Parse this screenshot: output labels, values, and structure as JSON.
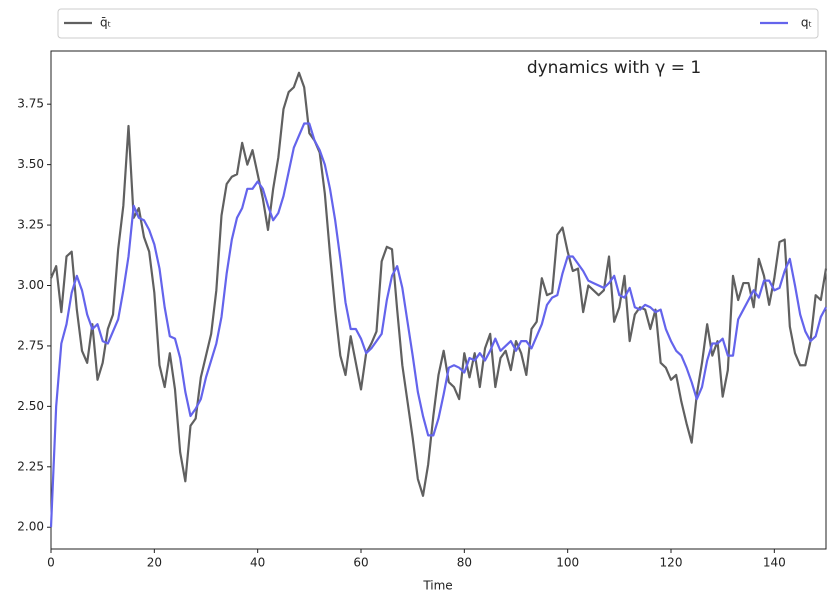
{
  "chart_data": {
    "type": "line",
    "title": "dynamics with γ = 1",
    "xlabel": "Time",
    "x": [
      0,
      1,
      2,
      3,
      4,
      5,
      6,
      7,
      8,
      9,
      10,
      11,
      12,
      13,
      14,
      15,
      16,
      17,
      18,
      19,
      20,
      21,
      22,
      23,
      24,
      25,
      26,
      27,
      28,
      29,
      30,
      31,
      32,
      33,
      34,
      35,
      36,
      37,
      38,
      39,
      40,
      41,
      42,
      43,
      44,
      45,
      46,
      47,
      48,
      49,
      50,
      51,
      52,
      53,
      54,
      55,
      56,
      57,
      58,
      59,
      60,
      61,
      62,
      63,
      64,
      65,
      66,
      67,
      68,
      69,
      70,
      71,
      72,
      73,
      74,
      75,
      76,
      77,
      78,
      79,
      80,
      81,
      82,
      83,
      84,
      85,
      86,
      87,
      88,
      89,
      90,
      91,
      92,
      93,
      94,
      95,
      96,
      97,
      98,
      99,
      100,
      101,
      102,
      103,
      104,
      105,
      106,
      107,
      108,
      109,
      110,
      111,
      112,
      113,
      114,
      115,
      116,
      117,
      118,
      119,
      120,
      121,
      122,
      123,
      124,
      125,
      126,
      127,
      128,
      129,
      130,
      131,
      132,
      133,
      134,
      135,
      136,
      137,
      138,
      139,
      140,
      141,
      142,
      143,
      144,
      145,
      146,
      147,
      148,
      149,
      150
    ],
    "series": [
      {
        "name": "q̄ₜ",
        "color": "#606060",
        "values": [
          3.03,
          3.08,
          2.89,
          3.12,
          3.14,
          2.9,
          2.73,
          2.68,
          2.84,
          2.61,
          2.68,
          2.82,
          2.88,
          3.15,
          3.33,
          3.66,
          3.28,
          3.32,
          3.2,
          3.14,
          2.97,
          2.67,
          2.58,
          2.72,
          2.57,
          2.31,
          2.19,
          2.42,
          2.45,
          2.62,
          2.71,
          2.8,
          2.98,
          3.29,
          3.42,
          3.45,
          3.46,
          3.59,
          3.5,
          3.56,
          3.46,
          3.36,
          3.23,
          3.4,
          3.53,
          3.73,
          3.8,
          3.82,
          3.88,
          3.82,
          3.63,
          3.6,
          3.55,
          3.38,
          3.13,
          2.9,
          2.71,
          2.63,
          2.79,
          2.68,
          2.57,
          2.72,
          2.76,
          2.81,
          3.1,
          3.16,
          3.15,
          2.9,
          2.67,
          2.52,
          2.37,
          2.2,
          2.13,
          2.26,
          2.46,
          2.63,
          2.73,
          2.6,
          2.58,
          2.53,
          2.72,
          2.62,
          2.72,
          2.58,
          2.74,
          2.8,
          2.58,
          2.7,
          2.73,
          2.65,
          2.77,
          2.72,
          2.63,
          2.82,
          2.85,
          3.03,
          2.96,
          2.97,
          3.21,
          3.24,
          3.14,
          3.06,
          3.07,
          2.89,
          3.0,
          2.98,
          2.96,
          2.98,
          3.12,
          2.85,
          2.91,
          3.04,
          2.77,
          2.88,
          2.91,
          2.9,
          2.82,
          2.9,
          2.68,
          2.66,
          2.61,
          2.63,
          2.52,
          2.43,
          2.35,
          2.55,
          2.68,
          2.84,
          2.71,
          2.77,
          2.54,
          2.65,
          3.04,
          2.94,
          3.01,
          3.01,
          2.91,
          3.11,
          3.04,
          2.92,
          3.03,
          3.18,
          3.19,
          2.83,
          2.72,
          2.67,
          2.67,
          2.77,
          2.96,
          2.94,
          3.07
        ]
      },
      {
        "name": "qₜ",
        "color": "#6464ec",
        "values": [
          2.0,
          2.5,
          2.76,
          2.84,
          2.97,
          3.04,
          2.98,
          2.88,
          2.82,
          2.84,
          2.77,
          2.76,
          2.81,
          2.86,
          2.98,
          3.12,
          3.33,
          3.28,
          3.27,
          3.23,
          3.17,
          3.07,
          2.91,
          2.79,
          2.78,
          2.7,
          2.56,
          2.46,
          2.49,
          2.53,
          2.62,
          2.69,
          2.76,
          2.87,
          3.05,
          3.19,
          3.28,
          3.32,
          3.4,
          3.4,
          3.43,
          3.4,
          3.33,
          3.27,
          3.3,
          3.37,
          3.47,
          3.57,
          3.62,
          3.67,
          3.67,
          3.6,
          3.56,
          3.5,
          3.4,
          3.27,
          3.11,
          2.93,
          2.82,
          2.82,
          2.78,
          2.72,
          2.74,
          2.77,
          2.8,
          2.94,
          3.04,
          3.08,
          2.99,
          2.85,
          2.71,
          2.56,
          2.46,
          2.38,
          2.38,
          2.45,
          2.55,
          2.66,
          2.67,
          2.66,
          2.64,
          2.7,
          2.69,
          2.72,
          2.69,
          2.73,
          2.78,
          2.73,
          2.75,
          2.77,
          2.73,
          2.77,
          2.77,
          2.74,
          2.79,
          2.84,
          2.92,
          2.95,
          2.96,
          3.05,
          3.12,
          3.12,
          3.09,
          3.06,
          3.02,
          3.01,
          3.0,
          2.99,
          3.01,
          3.04,
          2.96,
          2.95,
          2.99,
          2.91,
          2.9,
          2.92,
          2.91,
          2.89,
          2.9,
          2.82,
          2.77,
          2.73,
          2.71,
          2.66,
          2.6,
          2.53,
          2.58,
          2.69,
          2.76,
          2.76,
          2.78,
          2.71,
          2.71,
          2.86,
          2.9,
          2.94,
          2.98,
          2.95,
          3.02,
          3.02,
          2.98,
          2.99,
          3.06,
          3.11,
          3.0,
          2.88,
          2.81,
          2.77,
          2.79,
          2.87,
          2.91
        ]
      }
    ],
    "xlim": [
      0,
      150
    ],
    "xticks": [
      0,
      20,
      40,
      60,
      80,
      100,
      120,
      140
    ],
    "ylim": [
      1.91,
      3.97
    ],
    "yticks": [
      {
        "value": 2,
        "label": "2.00"
      },
      {
        "value": 2.25,
        "label": "2.25"
      },
      {
        "value": 2.5,
        "label": "2.50"
      },
      {
        "value": 2.75,
        "label": "2.75"
      },
      {
        "value": 3,
        "label": "3.00"
      },
      {
        "value": 3.25,
        "label": "3.25"
      },
      {
        "value": 3.5,
        "label": "3.50"
      },
      {
        "value": 3.75,
        "label": "3.75"
      }
    ],
    "legend": "top-expand"
  }
}
